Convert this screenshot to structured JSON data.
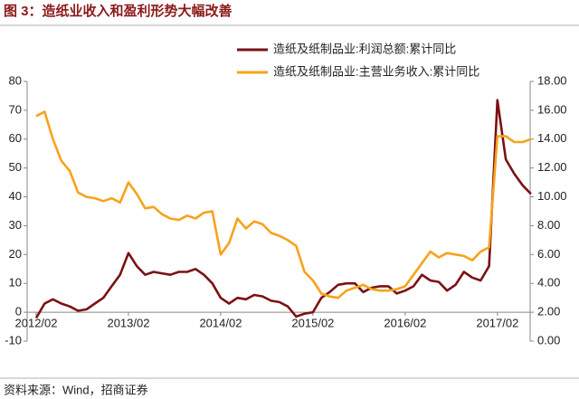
{
  "chart_data": {
    "type": "line",
    "title": "图 3：造纸业收入和盈利形势大幅改善",
    "source": "资料来源：Wind，招商证券",
    "categories": [
      "2012/02",
      null,
      null,
      null,
      null,
      null,
      null,
      null,
      null,
      null,
      null,
      "2013/02",
      null,
      null,
      null,
      null,
      null,
      null,
      null,
      null,
      null,
      null,
      "2014/02",
      null,
      null,
      null,
      null,
      null,
      null,
      null,
      null,
      null,
      null,
      "2015/02",
      null,
      null,
      null,
      null,
      null,
      null,
      null,
      null,
      null,
      null,
      "2016/02",
      null,
      null,
      null,
      null,
      null,
      null,
      null,
      null,
      null,
      null,
      "2017/02",
      null,
      null,
      null,
      null
    ],
    "series": [
      {
        "name": "造纸及纸制品业:利润总额:累计同比",
        "color": "#7b1113",
        "values": [
          -2,
          3,
          4.5,
          3,
          2,
          0.5,
          1,
          3,
          5,
          9,
          13,
          20.5,
          16,
          13,
          14,
          13.5,
          13,
          14,
          14,
          15,
          13,
          10,
          5,
          3,
          5,
          4.5,
          6,
          5.5,
          4,
          3.5,
          2,
          -1.5,
          -0.5,
          0,
          5,
          7,
          9.5,
          10,
          10,
          7,
          8.5,
          9,
          9,
          6.5,
          7.5,
          9,
          13,
          11,
          10.5,
          7.5,
          9.5,
          14,
          12,
          11,
          16,
          73.5,
          53,
          48,
          44,
          41
        ]
      },
      {
        "name": "造纸及纸制品业:主营业务收入:累计同比",
        "color": "#f7a21b",
        "axis": "y2",
        "values": [
          15.6,
          15.9,
          14,
          12.5,
          11.8,
          10.3,
          10,
          9.9,
          9.7,
          9.9,
          9.6,
          11,
          10.2,
          9.2,
          9.3,
          8.8,
          8.5,
          8.4,
          8.7,
          8.5,
          8.9,
          9,
          6,
          6.8,
          8.5,
          7.8,
          8.3,
          8.1,
          7.5,
          7.3,
          7,
          6.6,
          4.8,
          4.2,
          3.3,
          3.1,
          3.0,
          3.5,
          3.7,
          3.9,
          3.6,
          3.5,
          3.5,
          3.6,
          3.8,
          4.6,
          5.4,
          6.2,
          5.8,
          6.1,
          6.0,
          5.9,
          5.6,
          6.2,
          6.5,
          14.2,
          14.2,
          13.8,
          13.8,
          14
        ]
      }
    ],
    "ylim": [
      -10,
      80
    ],
    "yticks": [
      -10,
      0,
      10,
      20,
      30,
      40,
      50,
      60,
      70,
      80
    ],
    "y2lim": [
      0,
      18
    ],
    "y2ticks": [
      {
        "value": 0,
        "label": "0.00"
      },
      {
        "value": 2,
        "label": "2.00"
      },
      {
        "value": 4,
        "label": "4.00"
      },
      {
        "value": 6,
        "label": "6.00"
      },
      {
        "value": 8,
        "label": "8.00"
      },
      {
        "value": 10,
        "label": "10.00"
      },
      {
        "value": 12,
        "label": "12.00"
      },
      {
        "value": 14,
        "label": "14.00"
      },
      {
        "value": 16,
        "label": "16.00"
      },
      {
        "value": 18,
        "label": "18.00"
      }
    ],
    "legend": "top-right"
  }
}
